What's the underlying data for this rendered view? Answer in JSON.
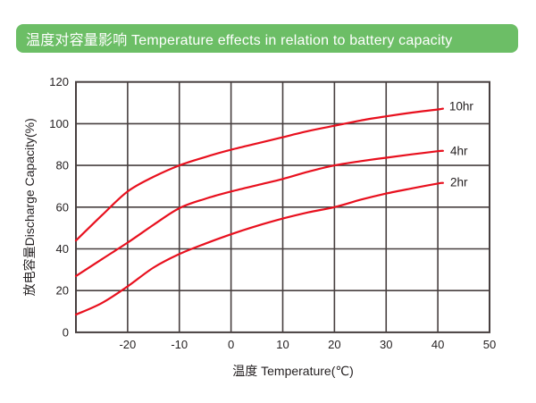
{
  "banner": {
    "text": "温度对容量影响 Temperature effects in relation to battery capacity",
    "bg_color": "#6cbe66",
    "text_color": "#ffffff"
  },
  "chart_data": {
    "type": "line",
    "title": "温度对容量影响 Temperature effects in relation to battery capacity",
    "xlabel": "温度 Temperature(℃)",
    "ylabel": "放电容量Discharge Capacity(%)",
    "xlim": [
      -30,
      50
    ],
    "ylim": [
      0,
      120
    ],
    "x_ticks": [
      -20,
      -10,
      0,
      10,
      20,
      30,
      40,
      50
    ],
    "y_ticks": [
      0,
      20,
      40,
      60,
      80,
      100,
      120
    ],
    "grid": true,
    "legend_position": "end-of-line-labels",
    "line_color": "#e8101e",
    "grid_color": "#473f3f",
    "text_color": "#231f20",
    "x": [
      -30,
      -25,
      -20,
      -15,
      -10,
      -5,
      0,
      5,
      10,
      15,
      20,
      25,
      30,
      35,
      40,
      41
    ],
    "series": [
      {
        "name": "10hr",
        "values": [
          44,
          56,
          67.5,
          74.5,
          80,
          84,
          87.5,
          90.5,
          93.5,
          96.5,
          99,
          101.5,
          103.5,
          105.3,
          106.8,
          107.2
        ],
        "label_pos": {
          "x": 42.2,
          "y": 108.3
        }
      },
      {
        "name": "4hr",
        "values": [
          27,
          35,
          43,
          51.5,
          59.5,
          64,
          67.5,
          70.5,
          73.5,
          77,
          80,
          82,
          83.7,
          85.3,
          86.8,
          87
        ],
        "label_pos": {
          "x": 42.4,
          "y": 87
        }
      },
      {
        "name": "2hr",
        "values": [
          8.5,
          14,
          22,
          31,
          37.5,
          42.5,
          47,
          51,
          54.5,
          57.5,
          60,
          63.5,
          66.5,
          69,
          71.3,
          71.6
        ],
        "label_pos": {
          "x": 42.4,
          "y": 71.8
        }
      }
    ]
  }
}
